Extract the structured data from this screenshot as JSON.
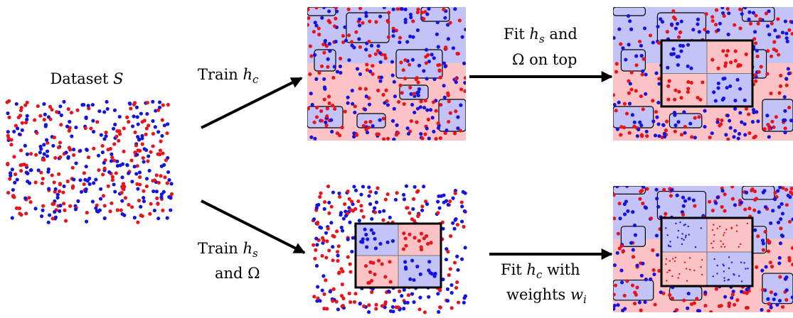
{
  "dataset": {
    "lines": [
      [
        "Dataset",
        "S"
      ]
    ]
  },
  "edges": [
    {
      "lines": [
        [
          "Train",
          "h",
          "c"
        ]
      ]
    },
    {
      "lines": [
        [
          "Fit",
          "h",
          "s",
          "and"
        ],
        [
          "Ω on top"
        ]
      ]
    },
    {
      "lines": [
        [
          "Train",
          "h",
          "s"
        ],
        [
          "and Ω"
        ]
      ]
    },
    {
      "lines": [
        [
          "Fit",
          "h",
          "c",
          "with"
        ],
        [
          "weights",
          "w",
          "i"
        ]
      ]
    }
  ]
}
